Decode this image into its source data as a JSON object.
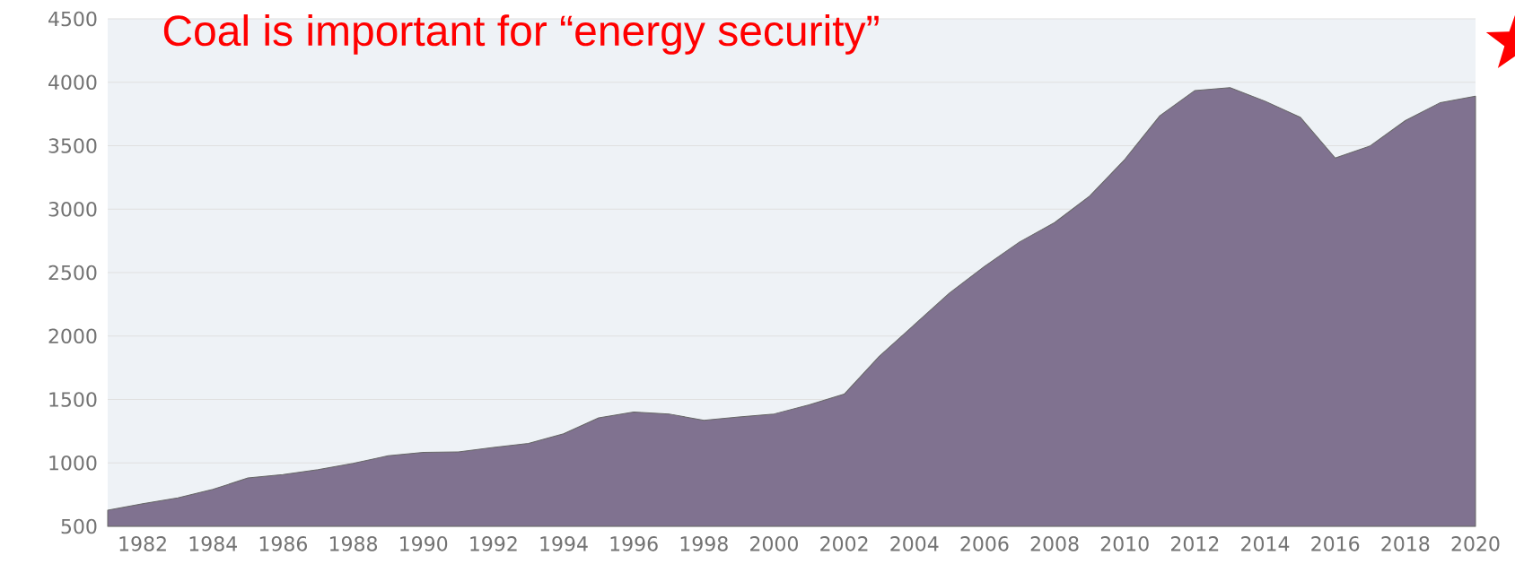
{
  "chart_data": {
    "type": "area",
    "title": "Coal is important for “energy security”",
    "x": [
      1981,
      1982,
      1983,
      1984,
      1985,
      1986,
      1987,
      1988,
      1989,
      1990,
      1991,
      1992,
      1993,
      1994,
      1995,
      1996,
      1997,
      1998,
      1999,
      2000,
      2001,
      2002,
      2003,
      2004,
      2005,
      2006,
      2007,
      2008,
      2009,
      2010,
      2011,
      2012,
      2013,
      2014,
      2015,
      2016,
      2017,
      2018,
      2019,
      2020
    ],
    "values": [
      628,
      679,
      725,
      791,
      881,
      908,
      947,
      997,
      1056,
      1083,
      1087,
      1122,
      1153,
      1230,
      1355,
      1401,
      1386,
      1335,
      1362,
      1386,
      1457,
      1542,
      1840,
      2089,
      2338,
      2549,
      2741,
      2894,
      3104,
      3392,
      3736,
      3935,
      3958,
      3851,
      3725,
      3403,
      3499,
      3698,
      3840,
      3890
    ],
    "color": "#807290",
    "xlim": [
      1981,
      2020
    ],
    "ylim": [
      500,
      4500
    ],
    "xticks": [
      1982,
      1984,
      1986,
      1988,
      1990,
      1992,
      1994,
      1996,
      1998,
      2000,
      2002,
      2004,
      2006,
      2008,
      2010,
      2012,
      2014,
      2016,
      2018,
      2020
    ],
    "yticks": [
      500,
      1000,
      1500,
      2000,
      2500,
      3000,
      3500,
      4000,
      4500
    ],
    "grid": "y"
  }
}
